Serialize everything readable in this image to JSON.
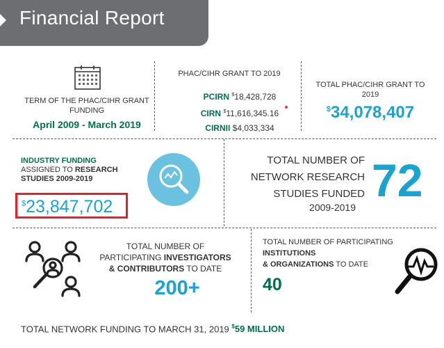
{
  "header": {
    "title": "Financial Report"
  },
  "term": {
    "label": "TERM OF THE PHAC/CIHR GRANT FUNDING",
    "dates": "April 2009 - March 2019"
  },
  "grant": {
    "title": "PHAC/CIHR GRANT TO 2019",
    "lines": [
      {
        "name": "PCIRN",
        "prefix": "$",
        "amount": "18,428,728"
      },
      {
        "name": "CIRN",
        "prefix": "$",
        "amount": "11,616,345.16"
      },
      {
        "name": "CIRNII",
        "prefix": "",
        "amount": "$4,033,334"
      }
    ]
  },
  "total": {
    "label": "TOTAL PHAC/CIHR GRANT TO 2019",
    "currency": "$",
    "value": "34,078,407"
  },
  "industry": {
    "label_a": "INDUSTRY FUNDING",
    "label_b": "ASSIGNED TO ",
    "label_c": "RESEARCH STUDIES 2009-2019",
    "currency": "$",
    "value": "23,847,702"
  },
  "studies": {
    "label": "TOTAL NUMBER OF NETWORK RESEARCH STUDIES FUNDED",
    "years": "2009-2019",
    "value": "72"
  },
  "investigators": {
    "label_a": "TOTAL NUMBER OF PARTICIPATING ",
    "label_b": "INVESTIGATORS",
    "label_c": "& CONTRIBUTORS",
    "label_d": " TO DATE",
    "value": "200+"
  },
  "institutions": {
    "label_a": "TOTAL NUMBER OF PARTICIPATING ",
    "label_b": "INSTITUTIONS",
    "label_c": "& ORGANIZATIONS",
    "label_d": " TO DATE",
    "value": "40"
  },
  "footer": {
    "text": "TOTAL NETWORK FUNDING TO MARCH 31, 2019 ",
    "currency": "$",
    "amount": "59 MILLION"
  },
  "colors": {
    "green": "#00704a",
    "blue": "#1ba3cf",
    "highlight": "#e32129",
    "banner": "#6d6e71"
  },
  "icons": [
    "calendar-icon",
    "magnifier-chart-icon",
    "people-network-icon",
    "magnifier-pulse-icon"
  ]
}
